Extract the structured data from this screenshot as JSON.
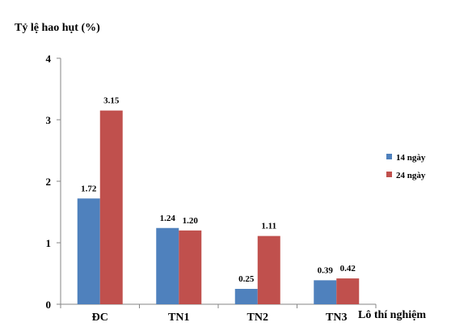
{
  "chart_data": {
    "type": "bar",
    "ylabel": "Tỷ lệ hao hụt (%)",
    "xlabel": "Lô thí nghiệm",
    "categories": [
      "ĐC",
      "TN1",
      "TN2",
      "TN3"
    ],
    "ylim": [
      0,
      4
    ],
    "yticks": [
      "0",
      "1",
      "2",
      "3",
      "4"
    ],
    "grid": false,
    "legend_position": "right",
    "series": [
      {
        "name": "14 ngày",
        "color": "#4F81BD",
        "values": [
          1.72,
          1.24,
          0.25,
          0.39
        ],
        "labels": [
          "1.72",
          "1.24",
          "0.25",
          "0.39"
        ]
      },
      {
        "name": "24 ngày",
        "color": "#C0504D",
        "values": [
          3.15,
          1.2,
          1.11,
          0.42
        ],
        "labels": [
          "3.15",
          "1.20",
          "1.11",
          "0.42"
        ]
      }
    ]
  }
}
